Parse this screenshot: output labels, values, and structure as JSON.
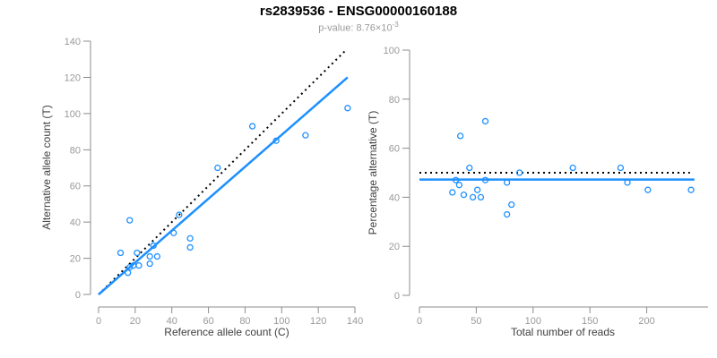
{
  "header": {
    "title": "rs2839536 - ENSG00000160188",
    "subtitle_prefix": "p-value: 8.76×10",
    "subtitle_exponent": "-3"
  },
  "colors": {
    "accent_blue": "#1E90FF",
    "identity_line_black": "#000000",
    "axis_gray": "#8c8c8c",
    "tick_label_gray": "#999999",
    "axis_label_dark": "#404040",
    "title_black": "#000000",
    "subtitle_gray": "#9b9b9b"
  },
  "chart_data": [
    {
      "type": "scatter",
      "title": "",
      "xlabel": "Reference allele count (C)",
      "ylabel": "Alternative allele count (T)",
      "xlim": [
        0,
        140
      ],
      "ylim": [
        0,
        140
      ],
      "xticks": [
        0,
        20,
        40,
        60,
        80,
        100,
        120,
        140
      ],
      "yticks": [
        0,
        20,
        40,
        60,
        80,
        100,
        120,
        140
      ],
      "grid": false,
      "legend": false,
      "point_color": "#1E90FF",
      "points": [
        [
          12,
          23
        ],
        [
          16,
          12
        ],
        [
          17,
          15
        ],
        [
          17,
          41
        ],
        [
          19,
          16
        ],
        [
          21,
          23
        ],
        [
          22,
          16
        ],
        [
          28,
          17
        ],
        [
          28,
          21
        ],
        [
          30,
          27
        ],
        [
          32,
          21
        ],
        [
          41,
          34
        ],
        [
          44,
          44
        ],
        [
          50,
          26
        ],
        [
          50,
          31
        ],
        [
          65,
          70
        ],
        [
          84,
          93
        ],
        [
          97,
          85
        ],
        [
          113,
          88
        ],
        [
          136,
          103
        ]
      ],
      "lines": [
        {
          "name": "identity-line",
          "style": "dotted",
          "color": "#000000",
          "width": 2,
          "from": [
            0,
            0
          ],
          "to": [
            135,
            135
          ]
        },
        {
          "name": "fit-line",
          "style": "solid",
          "color": "#1E90FF",
          "width": 2.5,
          "from": [
            0,
            0
          ],
          "to": [
            136,
            120
          ]
        }
      ]
    },
    {
      "type": "scatter",
      "title": "",
      "xlabel": "Total number of reads",
      "ylabel": "Percentage alternative (T)",
      "xlim": [
        0,
        253
      ],
      "ylim": [
        0,
        100
      ],
      "xticks": [
        0,
        50,
        100,
        150,
        200
      ],
      "yticks": [
        0,
        20,
        40,
        60,
        80,
        100
      ],
      "grid": false,
      "legend": false,
      "point_color": "#1E90FF",
      "points": [
        [
          29,
          42
        ],
        [
          32,
          47
        ],
        [
          35,
          45
        ],
        [
          36,
          65
        ],
        [
          39,
          41
        ],
        [
          44,
          52
        ],
        [
          47,
          40
        ],
        [
          51,
          43
        ],
        [
          54,
          40
        ],
        [
          58,
          47
        ],
        [
          58,
          71
        ],
        [
          77,
          33
        ],
        [
          77,
          46
        ],
        [
          81,
          37
        ],
        [
          88,
          50
        ],
        [
          135,
          52
        ],
        [
          177,
          52
        ],
        [
          183,
          46
        ],
        [
          201,
          43
        ],
        [
          239,
          43
        ]
      ],
      "lines": [
        {
          "name": "expected-50pct-line",
          "style": "dotted",
          "color": "#000000",
          "width": 2,
          "from": [
            0,
            50
          ],
          "to": [
            238,
            50
          ]
        },
        {
          "name": "mean-percentage-line",
          "style": "solid",
          "color": "#1E90FF",
          "width": 2.5,
          "from": [
            0,
            47.2
          ],
          "to": [
            242,
            47.2
          ]
        }
      ]
    }
  ]
}
